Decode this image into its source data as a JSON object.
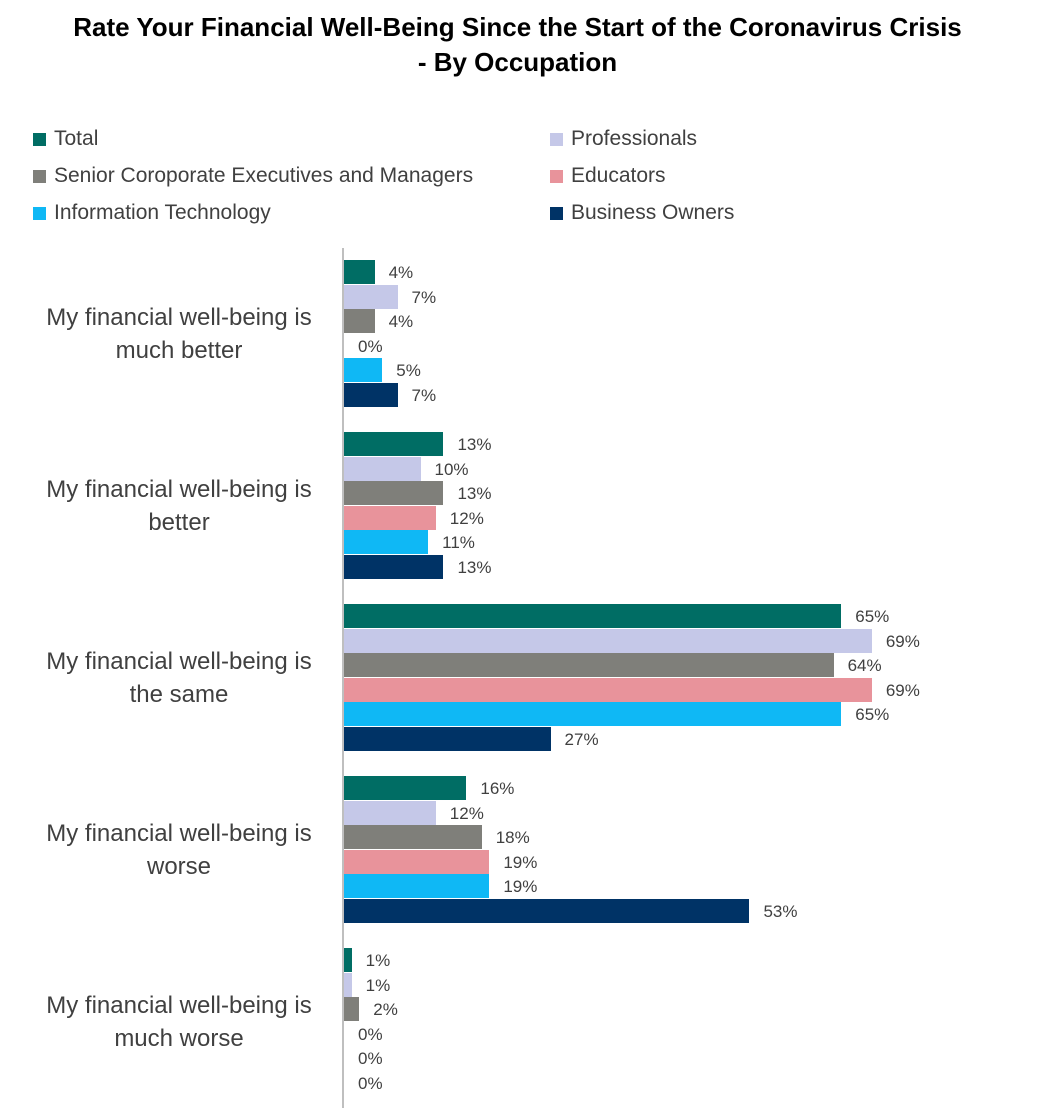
{
  "chart_data": {
    "type": "bar",
    "orientation": "horizontal",
    "title": "Rate Your Financial Well-Being Since the Start of the Coronavirus Crisis\n- By Occupation",
    "categories": [
      "My financial well-being is much better",
      "My financial well-being is better",
      "My financial well-being is the same",
      "My financial well-being is worse",
      "My financial well-being is much worse"
    ],
    "series": [
      {
        "name": "Total",
        "color": "#006D64",
        "values": [
          4,
          13,
          65,
          16,
          1
        ],
        "labels": [
          "4%",
          "13%",
          "65%",
          "16%",
          "1%"
        ]
      },
      {
        "name": "Professionals",
        "color": "#C5C8E8",
        "values": [
          7,
          10,
          69,
          12,
          1
        ],
        "labels": [
          "7%",
          "10%",
          "69%",
          "12%",
          "1%"
        ]
      },
      {
        "name": "Senior Coroporate Executives and Managers",
        "color": "#7F7F7A",
        "values": [
          4,
          13,
          64,
          18,
          2
        ],
        "labels": [
          "4%",
          "13%",
          "64%",
          "18%",
          "2%"
        ]
      },
      {
        "name": "Educators",
        "color": "#E8939B",
        "values": [
          0,
          12,
          69,
          19,
          0
        ],
        "labels": [
          "0%",
          "12%",
          "69%",
          "19%",
          "0%"
        ]
      },
      {
        "name": "Information Technology",
        "color": "#0FB8F5",
        "values": [
          5,
          11,
          65,
          19,
          0
        ],
        "labels": [
          "5%",
          "11%",
          "65%",
          "19%",
          "0%"
        ]
      },
      {
        "name": "Business Owners",
        "color": "#003366",
        "values": [
          7,
          13,
          27,
          53,
          0
        ],
        "labels": [
          "7%",
          "13%",
          "27%",
          "53%",
          "0%"
        ]
      }
    ],
    "xlim": [
      0,
      70
    ],
    "grid": false,
    "legend_position": "top"
  }
}
